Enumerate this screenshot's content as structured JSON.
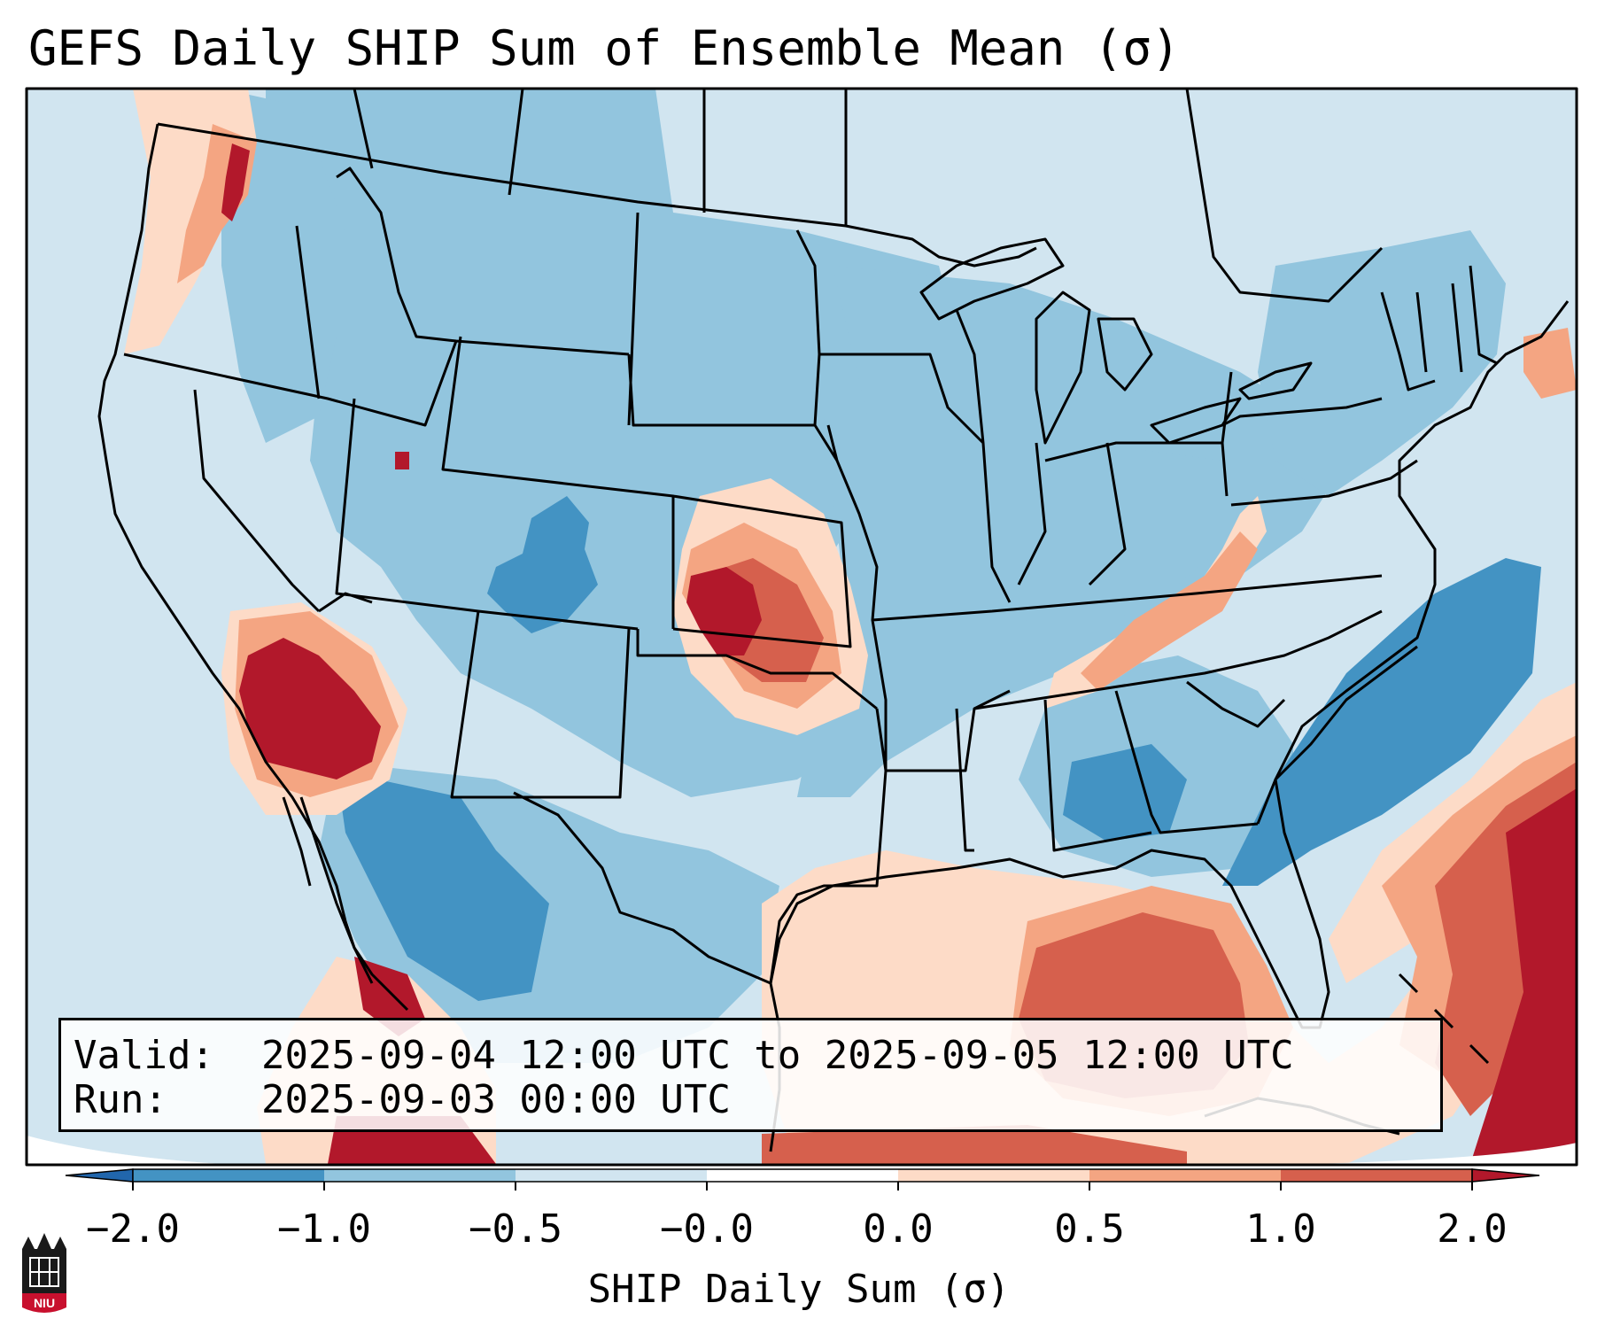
{
  "title": "GEFS Daily SHIP Sum of Ensemble Mean (σ)",
  "info": {
    "valid_label": "Valid:",
    "valid_value": "2025-09-04 12:00 UTC to 2025-09-05 12:00 UTC",
    "run_label": "Run:",
    "run_value": "2025-09-03 00:00 UTC"
  },
  "colorbar": {
    "title": "SHIP Daily Sum (σ)",
    "tick_labels": [
      "−2.0",
      "−1.0",
      "−0.5",
      "−0.0",
      "0.0",
      "0.5",
      "1.0",
      "2.0"
    ],
    "colors": {
      "under": "#2166ac",
      "bins": [
        "#4393c3",
        "#92c5de",
        "#d1e5f0",
        "#ffffff",
        "#fddbc7",
        "#f4a582",
        "#d6604d"
      ],
      "over": "#b2182b"
    }
  },
  "map": {
    "region": "Contiguous United States",
    "field_categories": {
      "strong_negative": "#4393c3",
      "negative": "#92c5de",
      "weak_negative": "#d1e5f0",
      "weak_positive": "#fddbc7",
      "positive": "#f4a582",
      "strong_positive": "#d6604d",
      "extreme_positive": "#b2182b"
    }
  },
  "logo": {
    "text": "NIU",
    "color": "#c8102e"
  }
}
